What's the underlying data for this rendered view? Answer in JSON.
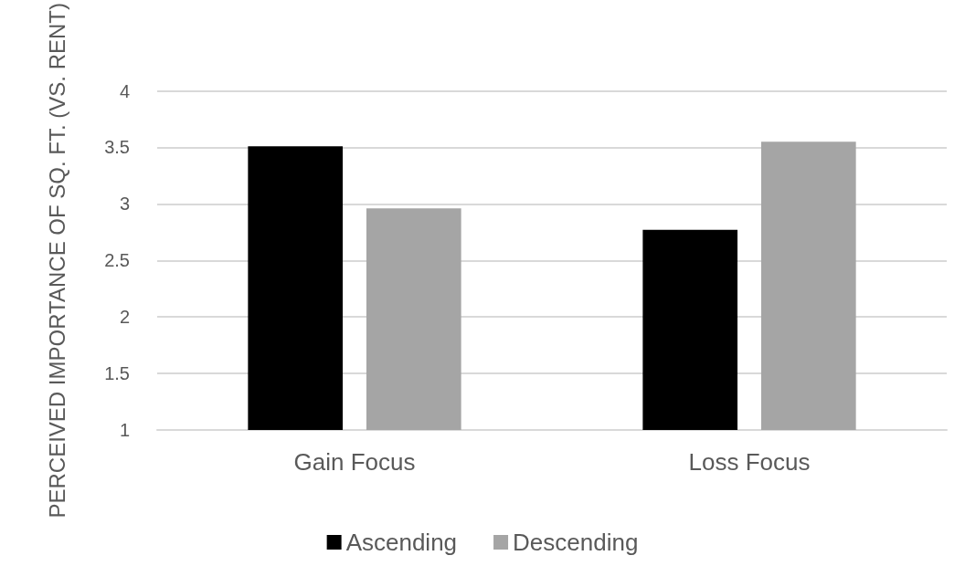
{
  "chart_data": {
    "type": "bar",
    "ylabel": "PERCEIVED IMPORTANCE OF SQ. FT. (VS. RENT)",
    "categories": [
      "Gain Focus",
      "Loss Focus"
    ],
    "series": [
      {
        "name": "Ascending",
        "color": "#000000",
        "values": [
          3.51,
          2.77
        ]
      },
      {
        "name": "Descending",
        "color": "#a5a5a5",
        "values": [
          2.96,
          3.55
        ]
      }
    ],
    "ylim": [
      1,
      4
    ],
    "yticks": [
      1,
      1.5,
      2,
      2.5,
      3,
      3.5,
      4
    ],
    "grid": "y",
    "legend": "bottom"
  }
}
